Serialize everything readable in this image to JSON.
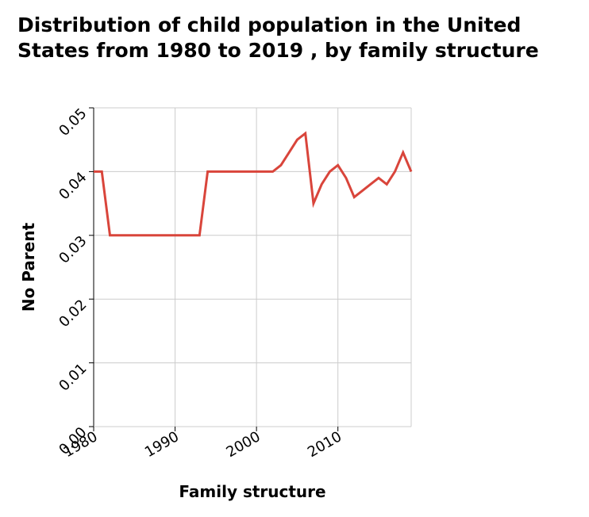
{
  "chart_data": {
    "type": "line",
    "title": "Distribution of child population in the United States from 1980 to 2019 , by family structure",
    "xlabel": "Family structure",
    "ylabel": "No Parent",
    "xlim": [
      1980,
      2019
    ],
    "ylim": [
      0,
      0.05
    ],
    "x_ticks": [
      1980,
      1990,
      2000,
      2010
    ],
    "x_tick_labels": [
      "1980",
      "1990",
      "2000",
      "2010"
    ],
    "y_ticks": [
      0,
      0.01,
      0.02,
      0.03,
      0.04,
      0.05
    ],
    "y_tick_labels": [
      "0.00",
      "0.01",
      "0.02",
      "0.03",
      "0.04",
      "0.05"
    ],
    "grid": true,
    "legend": "none",
    "series": [
      {
        "color": "#d9453b",
        "x": [
          1980,
          1981,
          1982,
          1983,
          1984,
          1985,
          1986,
          1987,
          1988,
          1989,
          1990,
          1991,
          1992,
          1993,
          1994,
          1995,
          1996,
          1997,
          1998,
          1999,
          2000,
          2001,
          2002,
          2003,
          2004,
          2005,
          2006,
          2007,
          2008,
          2009,
          2010,
          2011,
          2012,
          2013,
          2014,
          2015,
          2016,
          2017,
          2018,
          2019
        ],
        "values": [
          0.04,
          0.04,
          0.03,
          0.03,
          0.03,
          0.03,
          0.03,
          0.03,
          0.03,
          0.03,
          0.03,
          0.03,
          0.03,
          0.03,
          0.04,
          0.04,
          0.04,
          0.04,
          0.04,
          0.04,
          0.04,
          0.04,
          0.04,
          0.041,
          0.043,
          0.045,
          0.046,
          0.035,
          0.038,
          0.04,
          0.041,
          0.039,
          0.036,
          0.037,
          0.038,
          0.039,
          0.038,
          0.04,
          0.043,
          0.04
        ]
      }
    ]
  }
}
